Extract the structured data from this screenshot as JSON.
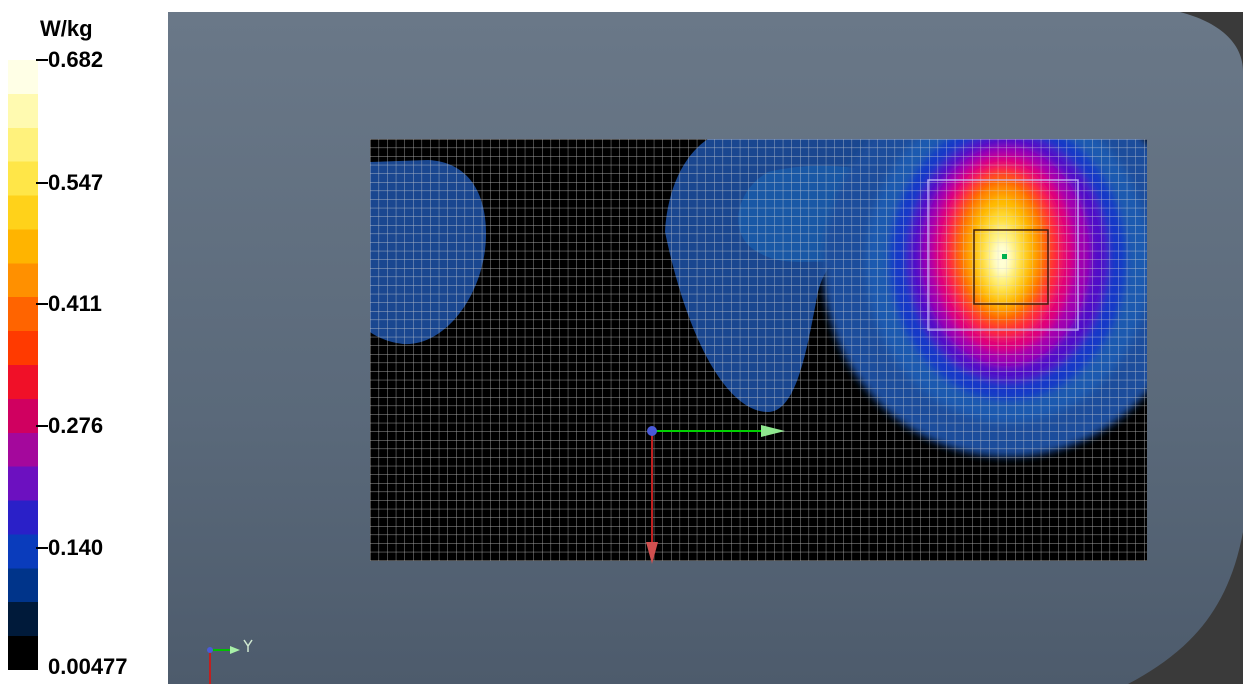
{
  "legend": {
    "unit": "W/kg",
    "labels": [
      "0.682",
      "0.547",
      "0.411",
      "0.276",
      "0.140",
      "0.00477"
    ],
    "colors": [
      "#000000",
      "#001a3a",
      "#00348a",
      "#0a3cbc",
      "#2a20c8",
      "#6c10c0",
      "#a4089c",
      "#d00060",
      "#f01028",
      "#ff3a00",
      "#ff6400",
      "#ff9000",
      "#ffb400",
      "#ffd21a",
      "#ffe648",
      "#fff27c",
      "#fffab0",
      "#ffffe6"
    ]
  },
  "colors": {
    "background": "#5d6c7e",
    "grid_area": "#000000",
    "grid_line": "#d8d8d8",
    "axis_x": "#00d000",
    "axis_y": "#c02020"
  },
  "icons": [
    "orientation-axes-icon",
    "probe-origin-icon",
    "peak-marker-icon"
  ]
}
